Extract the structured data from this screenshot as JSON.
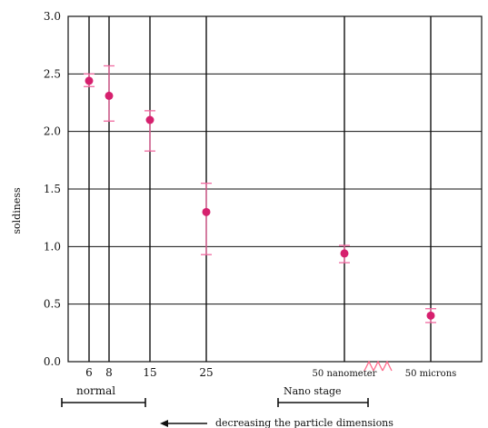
{
  "chart_data": {
    "type": "scatter",
    "ylabel": "soldiness",
    "ylim": [
      0,
      3
    ],
    "yticks": [
      "0.0",
      "0.5",
      "1.0",
      "1.5",
      "2.0",
      "2.5",
      "3.0"
    ],
    "categories": [
      "6",
      "8",
      "15",
      "25",
      "50 nanometer",
      "50 microns"
    ],
    "values": [
      2.44,
      2.31,
      2.1,
      1.3,
      0.94,
      0.4
    ],
    "error_low": [
      2.39,
      2.09,
      1.83,
      0.93,
      0.86,
      0.34
    ],
    "error_high": [
      2.5,
      2.57,
      2.18,
      1.55,
      1.01,
      0.46
    ],
    "grid": true,
    "marker_color": "#d6206e",
    "errorbar_color": "#f06aa0",
    "annotations": {
      "normal": "normal",
      "nano_stage": "Nano stage",
      "direction": "decreasing the particle dimensions"
    }
  }
}
